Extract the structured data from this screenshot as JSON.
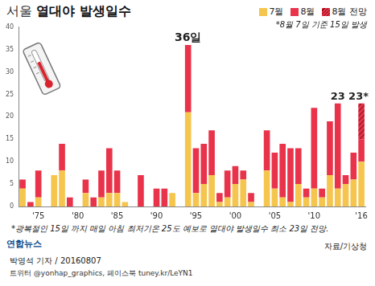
{
  "chart_data": {
    "type": "bar",
    "title": "서울 열대야 발생일수",
    "stacked": true,
    "grid": false,
    "legend": "upper right",
    "categories": [
      null,
      null,
      "'75",
      null,
      null,
      null,
      null,
      "'80",
      null,
      null,
      null,
      null,
      "'85",
      null,
      null,
      null,
      null,
      "'90",
      null,
      null,
      null,
      null,
      "'95",
      null,
      null,
      null,
      null,
      "'00",
      null,
      null,
      null,
      null,
      "'05",
      null,
      null,
      null,
      null,
      "'10",
      null,
      null,
      null,
      null,
      null,
      "'16"
    ],
    "series": [
      {
        "name": "7월",
        "color": "#f5c54e",
        "values": [
          4,
          0,
          2,
          0,
          7,
          8,
          0,
          0,
          3,
          0,
          2,
          3,
          3,
          1,
          0,
          0,
          0,
          0,
          0,
          3,
          0,
          21,
          3,
          5,
          7,
          1,
          2,
          5,
          6,
          1,
          0,
          8,
          4,
          2,
          1,
          5,
          2,
          4,
          2,
          7,
          4,
          5,
          6,
          10
        ]
      },
      {
        "name": "8월",
        "color": "#e8334a",
        "values": [
          2,
          1,
          6,
          0,
          0,
          6,
          2,
          0,
          3,
          2,
          6,
          10,
          5,
          0,
          0,
          7,
          0,
          4,
          4,
          0,
          0,
          15,
          10,
          9,
          10,
          2,
          6,
          4,
          2,
          2,
          0,
          9,
          8,
          12,
          12,
          8,
          2,
          18,
          2,
          12,
          19,
          2,
          6,
          5
        ]
      },
      {
        "name": "8월 전망",
        "color": "#e8334a",
        "values": [
          0,
          0,
          0,
          0,
          0,
          0,
          0,
          0,
          0,
          0,
          0,
          0,
          0,
          0,
          0,
          0,
          0,
          0,
          0,
          0,
          0,
          0,
          0,
          0,
          0,
          0,
          0,
          0,
          0,
          0,
          0,
          0,
          0,
          0,
          0,
          0,
          0,
          0,
          0,
          0,
          0,
          0,
          0,
          8
        ]
      }
    ],
    "ylim": [
      0,
      40
    ],
    "yticks": [
      0,
      5,
      10,
      15,
      20,
      25,
      30,
      35,
      40
    ],
    "annotations": [
      {
        "text": "36일",
        "index": 21
      },
      {
        "text": "23",
        "index": 40
      },
      {
        "text": "23*",
        "index": 43
      },
      {
        "text": "*8월 7일 기준 15일 발생"
      },
      {
        "text": "*광복절인 15일 까지 매일 아침 최저기온 25도 예보로 열대야 발생일수 최소 23일 전망."
      },
      {
        "text": "자료/기상청"
      },
      {
        "text": "연합뉴스"
      },
      {
        "text": "박영석 기자 / 20160807"
      },
      {
        "text": "트위터 @yonhap_graphics, 페이스북 tuney.kr/LeYN1"
      }
    ]
  }
}
